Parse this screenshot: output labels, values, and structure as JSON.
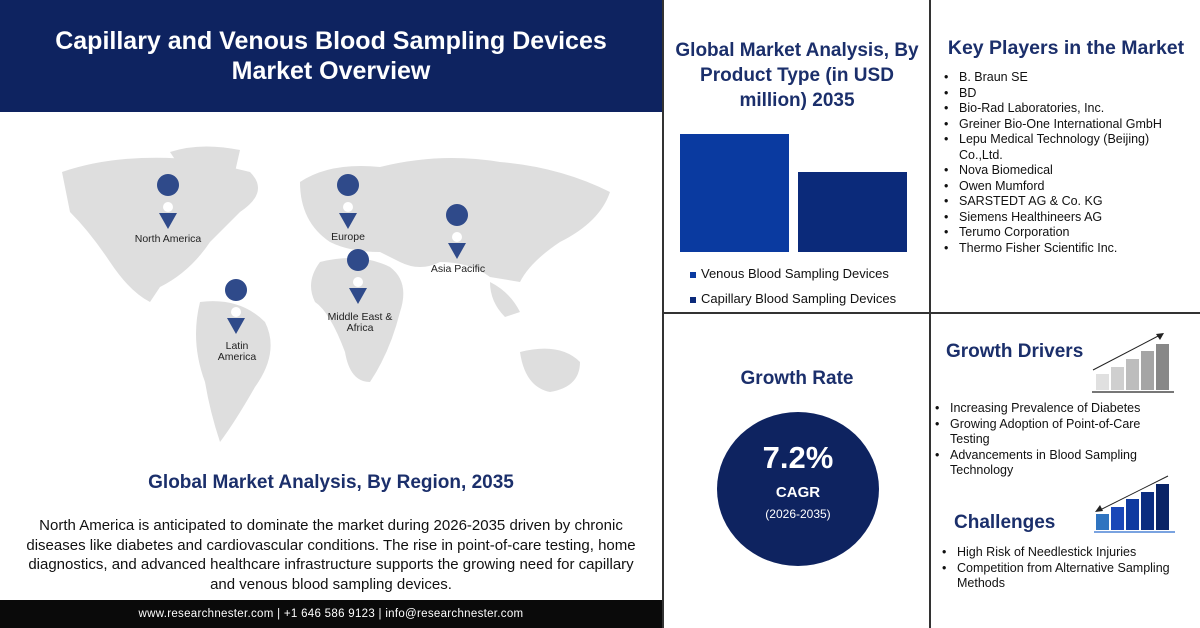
{
  "header": {
    "title": "Capillary and Venous Blood Sampling Devices Market Overview"
  },
  "map": {
    "pin_color": "#2f4a8a",
    "regions": [
      "North America",
      "Europe",
      "Asia Pacific",
      "Middle East & Africa",
      "Latin America"
    ]
  },
  "region_section": {
    "title": "Global Market Analysis, By Region, 2035",
    "text": "North America is anticipated to dominate the market during 2026-2035 driven by chronic diseases like diabetes and cardiovascular conditions. The rise in point-of-care testing, home diagnostics, and advanced healthcare infrastructure supports the growing need for capillary and venous blood sampling devices."
  },
  "footer": {
    "text": "www.researchnester.com | +1 646 586 9123 | info@researchnester.com"
  },
  "chart_data": {
    "type": "bar",
    "title": "Global Market Analysis, By Product Type (in USD million) 2035",
    "categories": [
      "Venous Blood Sampling Devices",
      "Capillary Blood Sampling Devices"
    ],
    "values_relative": [
      1.0,
      0.68
    ],
    "colors": [
      "#0a3aa0",
      "#0b2a7a"
    ],
    "legend_position": "bottom",
    "grid": false
  },
  "key_players": {
    "title": "Key Players in the Market",
    "items": [
      "B. Braun SE",
      "BD",
      "Bio-Rad Laboratories, Inc.",
      "Greiner Bio-One International GmbH",
      "Lepu Medical Technology (Beijing) Co.,Ltd.",
      "Nova Biomedical",
      "Owen Mumford",
      "SARSTEDT AG & Co. KG",
      "Siemens Healthineers AG",
      "Terumo Corporation",
      "Thermo Fisher Scientific Inc."
    ]
  },
  "growth_rate": {
    "title": "Growth Rate",
    "value": "7.2%",
    "label": "CAGR",
    "period": "(2026-2035)"
  },
  "growth_drivers": {
    "title": "Growth Drivers",
    "icon": "rising-bar-chart-icon",
    "items": [
      "Increasing Prevalence of Diabetes",
      "Growing Adoption of Point-of-Care Testing",
      "Advancements in Blood Sampling Technology"
    ]
  },
  "challenges": {
    "title": "Challenges",
    "icon": "declining-bar-chart-icon",
    "items": [
      "High Risk of Needlestick Injuries",
      "Competition from Alternative Sampling Methods"
    ]
  }
}
